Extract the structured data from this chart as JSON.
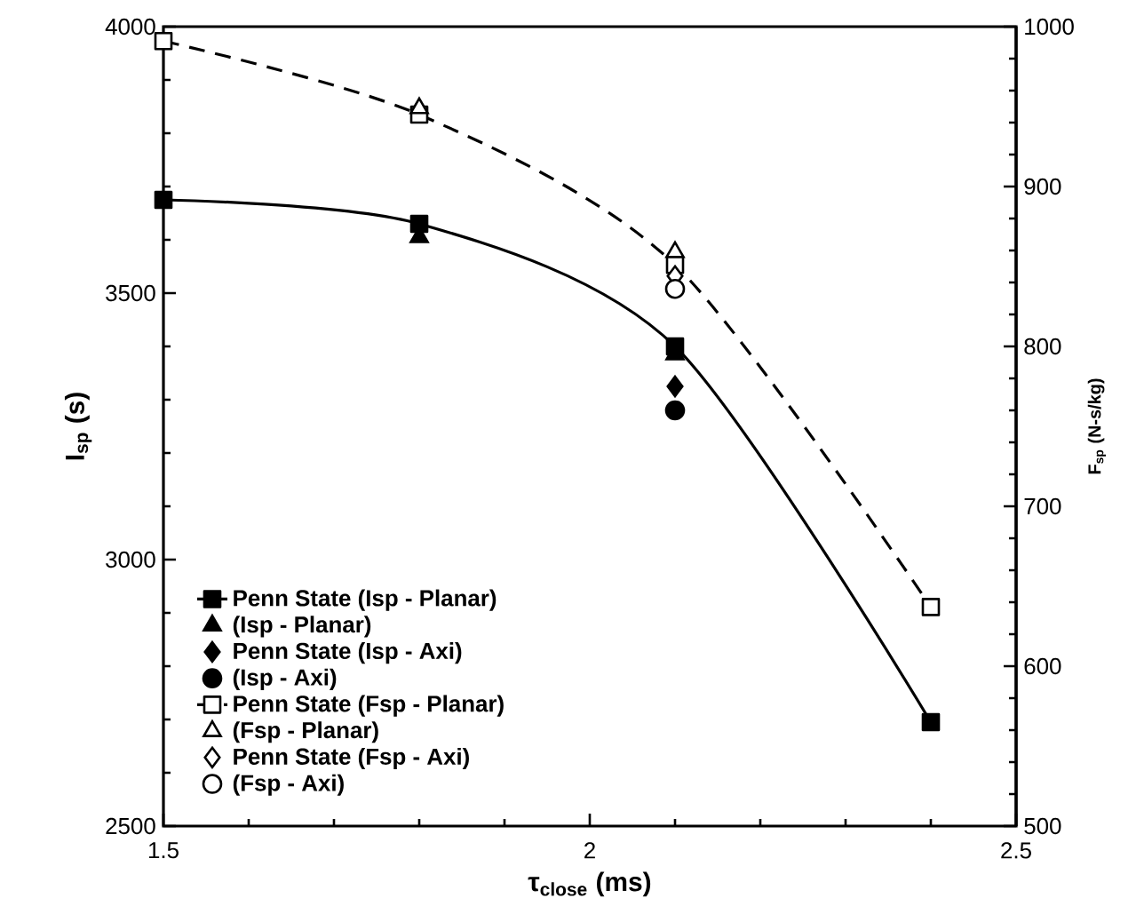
{
  "chart_data": {
    "type": "line",
    "xlabel": "τ$_{close}$ (ms)",
    "ylabel": "I$_{sp}$ (s)",
    "y2label": "F$_{sp}$ (N-s/kg)",
    "xlim": [
      1.5,
      2.5
    ],
    "xticks": [
      1.5,
      2,
      2.5
    ],
    "ylim": [
      2500,
      4000
    ],
    "yticks": [
      2500,
      3000,
      3500,
      4000
    ],
    "y2lim": [
      500,
      1000
    ],
    "y2ticks": [
      500,
      600,
      700,
      800,
      900,
      1000
    ],
    "grid": false,
    "legend": "bottom left",
    "series": [
      {
        "name": "Penn State (Isp - Planar)",
        "marker": "square",
        "line_style": "solid",
        "color": "#000000",
        "x": [
          1.5,
          1.8,
          2.1,
          2.4
        ],
        "values": [
          3675,
          3630,
          3400,
          2695
        ]
      },
      {
        "name": "(Isp - Planar)",
        "type": "scatter",
        "marker": "triangle",
        "color": "#000000",
        "x": [
          1.8,
          2.1
        ],
        "values": [
          3605,
          3385
        ]
      },
      {
        "name": "Penn State (Isp - Axi)",
        "type": "scatter",
        "marker": "diamond",
        "color": "#000000",
        "x": [
          2.1
        ],
        "values": [
          3325
        ]
      },
      {
        "name": "(Isp - Axi)",
        "type": "scatter",
        "marker": "circle",
        "color": "#000000",
        "x": [
          2.1
        ],
        "values": [
          3280
        ]
      },
      {
        "name": "Penn State (Fsp - Planar)",
        "marker": "square",
        "line_style": "dashed",
        "color": "#000000",
        "axis": "y2",
        "x": [
          1.5,
          1.8,
          2.1,
          2.4
        ],
        "values": [
          991,
          945,
          851,
          637
        ]
      },
      {
        "name": "(Fsp - Planar)",
        "type": "scatter",
        "marker": "triangle",
        "color": "#000000",
        "axis": "y2",
        "x": [
          1.8,
          2.1
        ],
        "values": [
          949,
          859
        ]
      },
      {
        "name": "Penn State (Fsp - Axi)",
        "type": "scatter",
        "marker": "diamond",
        "color": "#000000",
        "axis": "y2",
        "x": [
          2.1
        ],
        "values": [
          844
        ]
      },
      {
        "name": "(Fsp - Axi)",
        "type": "scatter",
        "marker": "circle",
        "color": "#000000",
        "axis": "y2",
        "x": [
          2.1
        ],
        "values": [
          836
        ]
      }
    ]
  }
}
